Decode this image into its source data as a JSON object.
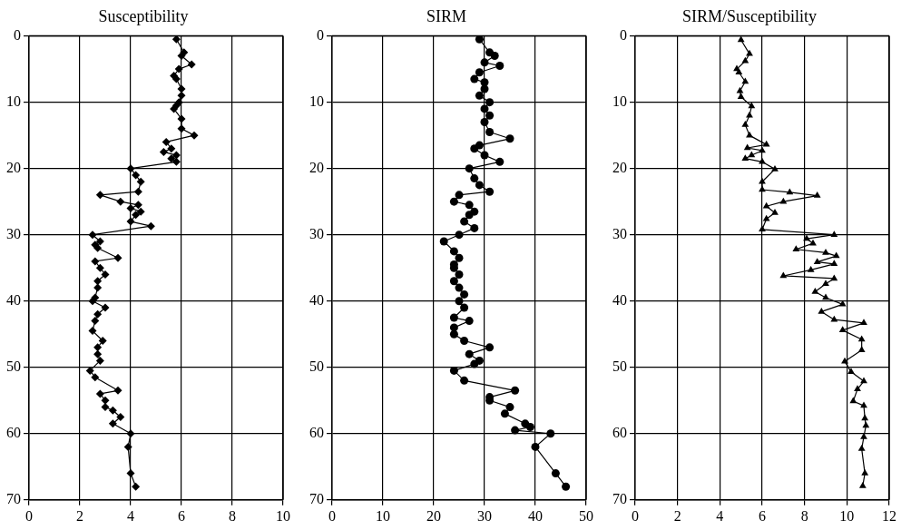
{
  "chart_data": [
    {
      "type": "line",
      "title": "Susceptibility",
      "marker": "diamond",
      "color": "#000000",
      "grid": true,
      "xlim": [
        0,
        10
      ],
      "xticks": [
        0,
        2,
        4,
        6,
        8,
        10
      ],
      "ylim": [
        70,
        0
      ],
      "yticks": [
        0,
        10,
        20,
        30,
        40,
        50,
        60,
        70
      ],
      "x": [
        5.8,
        6.1,
        6.0,
        6.4,
        5.9,
        5.7,
        5.8,
        6.0,
        6.0,
        5.9,
        5.8,
        5.7,
        6.0,
        6.0,
        6.5,
        5.4,
        5.6,
        5.3,
        5.8,
        5.6,
        5.8,
        4.0,
        4.2,
        4.4,
        4.3,
        2.8,
        3.6,
        4.3,
        4.0,
        4.4,
        4.2,
        4.0,
        4.8,
        2.5,
        2.8,
        2.6,
        2.7,
        3.5,
        2.6,
        2.8,
        3.0,
        2.7,
        2.7,
        2.6,
        2.5,
        3.0,
        2.7,
        2.6,
        2.5,
        2.9,
        2.7,
        2.7,
        2.8,
        2.4,
        2.6,
        3.5,
        2.8,
        3.0,
        3.0,
        3.3,
        3.6,
        3.3,
        4.0,
        3.9,
        4.0,
        4.2
      ],
      "values": [
        0.5,
        2.5,
        3,
        4.3,
        5,
        6,
        6.5,
        8,
        9,
        10,
        10.5,
        11,
        12.5,
        14,
        15,
        16,
        17,
        17.5,
        18,
        18.5,
        19,
        20,
        21,
        22,
        23.5,
        24,
        25,
        25.5,
        26,
        26.5,
        27,
        28,
        28.7,
        30,
        31,
        31.5,
        32,
        33.5,
        34,
        35,
        36,
        37,
        38,
        39.5,
        40,
        41,
        42,
        43,
        44.5,
        46,
        47,
        48,
        49,
        50.5,
        51.5,
        53.5,
        54,
        55,
        56,
        56.5,
        57.5,
        58.5,
        60,
        62,
        66,
        68
      ]
    },
    {
      "type": "line",
      "title": "SIRM",
      "marker": "circle",
      "color": "#000000",
      "grid": true,
      "xlim": [
        0,
        50
      ],
      "xticks": [
        0,
        10,
        20,
        30,
        40,
        50
      ],
      "ylim": [
        70,
        0
      ],
      "yticks": [
        0,
        10,
        20,
        30,
        40,
        50,
        60,
        70
      ],
      "x": [
        29,
        31,
        32,
        30,
        33,
        29,
        28,
        30,
        30,
        29,
        31,
        30,
        31,
        30,
        31,
        35,
        29,
        28,
        30,
        33,
        27,
        28,
        29,
        31,
        25,
        24,
        27,
        28,
        27,
        26,
        28,
        25,
        22,
        24,
        25,
        24,
        24,
        25,
        24,
        25,
        26,
        25,
        26,
        24,
        27,
        24,
        24,
        26,
        31,
        27,
        29,
        28,
        24,
        26,
        36,
        31,
        31,
        35,
        34,
        38,
        39,
        36,
        43,
        40,
        44,
        46
      ],
      "values": [
        0.5,
        2.5,
        3,
        4,
        4.5,
        5.5,
        6.5,
        7,
        8,
        9,
        10,
        11,
        12,
        13,
        14.5,
        15.5,
        16.5,
        17,
        18,
        19,
        20,
        21.5,
        22.5,
        23.5,
        24,
        25,
        25.5,
        26.5,
        27,
        28,
        29,
        30,
        31,
        32.5,
        33.5,
        34.5,
        35,
        36,
        37,
        38,
        39,
        40,
        41,
        42.5,
        43,
        44,
        45,
        46,
        47,
        48,
        49,
        49.5,
        50.5,
        52,
        53.5,
        54.5,
        55,
        56,
        57,
        58.5,
        59,
        59.5,
        60,
        62,
        66,
        68
      ]
    },
    {
      "type": "line",
      "title": "SIRM/Susceptibility",
      "marker": "triangle",
      "color": "#000000",
      "grid": true,
      "xlim": [
        0,
        12
      ],
      "xticks": [
        0,
        2,
        4,
        6,
        8,
        10,
        12
      ],
      "ylim": [
        70,
        0
      ],
      "yticks": [
        0,
        10,
        20,
        30,
        40,
        50,
        60,
        70
      ],
      "x": [
        5.0,
        5.4,
        5.2,
        4.8,
        4.9,
        5.2,
        4.95,
        5.0,
        5.5,
        5.4,
        5.2,
        5.4,
        6.2,
        5.3,
        6.0,
        5.5,
        5.2,
        6.0,
        6.6,
        6.0,
        6.0,
        7.3,
        8.6,
        7.0,
        6.2,
        6.6,
        6.2,
        6.0,
        9.4,
        8.1,
        8.4,
        7.6,
        9.0,
        9.5,
        8.6,
        9.4,
        8.3,
        7.0,
        9.4,
        9.0,
        8.5,
        9.0,
        9.8,
        8.8,
        9.4,
        10.8,
        9.8,
        10.7,
        10.7,
        9.9,
        10.2,
        10.8,
        10.5,
        10.3,
        10.8,
        10.85,
        10.9,
        10.8,
        10.7,
        10.85,
        10.75
      ],
      "values": [
        0.6,
        2.7,
        3.8,
        5,
        5.5,
        6.9,
        8.3,
        9.2,
        10.6,
        12,
        13.4,
        15,
        16.4,
        16.9,
        17.3,
        18,
        18.5,
        19,
        20.1,
        22,
        23.2,
        23.6,
        24.1,
        25,
        25.7,
        26.7,
        27.6,
        29.2,
        30,
        30.6,
        31.3,
        32.2,
        32.7,
        33.2,
        34.1,
        34.4,
        35.3,
        36.2,
        36.6,
        37.4,
        38.6,
        39.5,
        40.5,
        41.6,
        42.8,
        43.3,
        44.4,
        45.8,
        47.4,
        49.1,
        50.7,
        52.1,
        53.3,
        55.1,
        55.8,
        57.7,
        58.8,
        60.5,
        62.3,
        66,
        67.9
      ]
    }
  ]
}
